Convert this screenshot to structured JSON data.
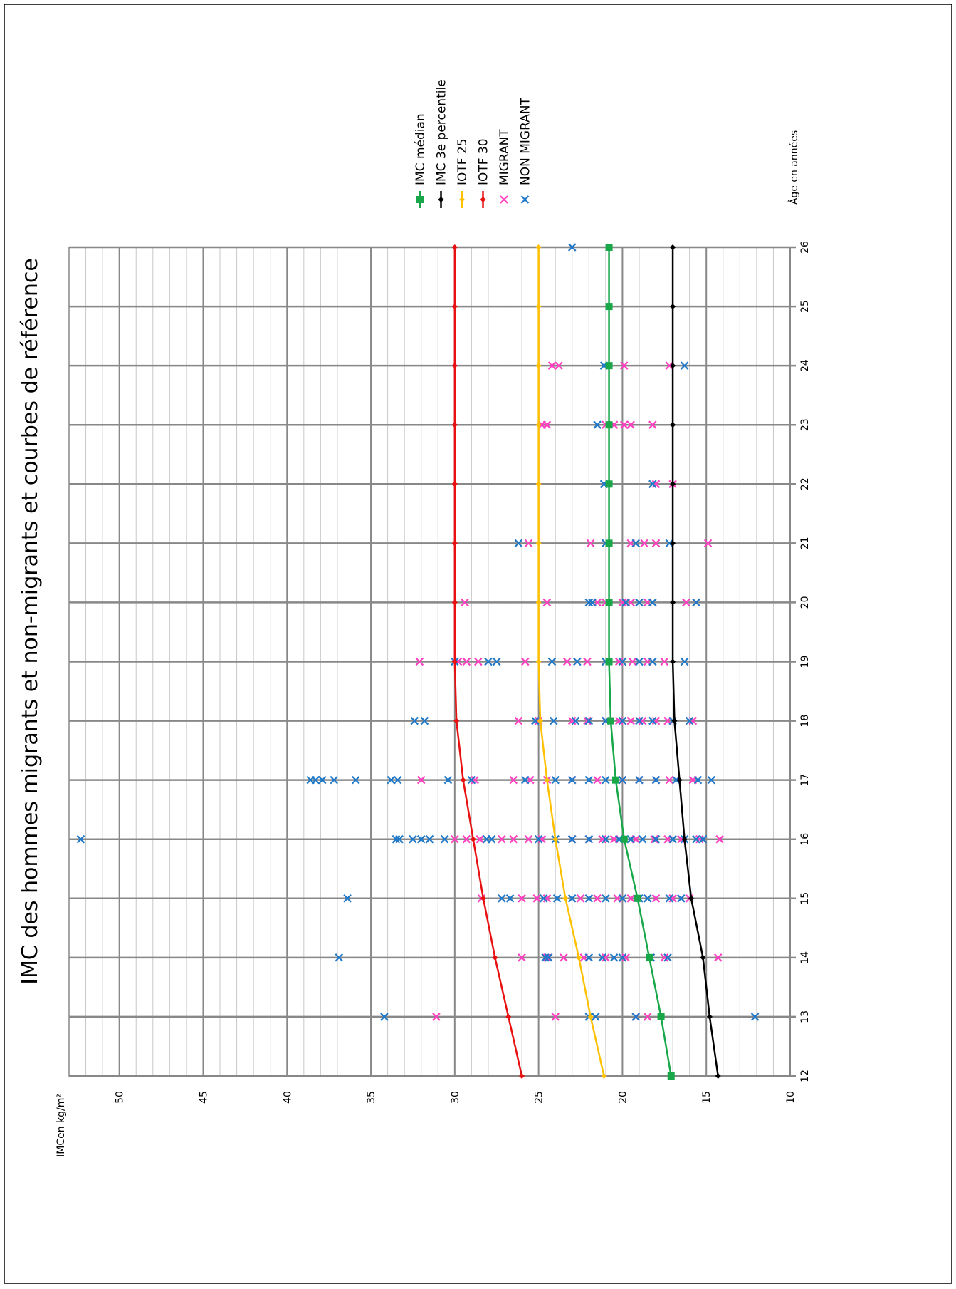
{
  "chart_data": {
    "type": "line",
    "title": "IMC des hommes migrants et non-migrants et courbes de référence",
    "xlabel": "Âge en années",
    "ylabel": "IMCen kg/m²",
    "x": [
      12,
      13,
      14,
      15,
      16,
      17,
      18,
      19,
      20,
      21,
      22,
      23,
      24,
      25,
      26
    ],
    "xlim": [
      12,
      26
    ],
    "xticks": [
      12,
      13,
      14,
      15,
      16,
      17,
      18,
      19,
      20,
      21,
      22,
      23,
      24,
      25,
      26
    ],
    "ylim": [
      10,
      53
    ],
    "yticks": [
      10,
      15,
      20,
      25,
      30,
      35,
      40,
      45,
      50
    ],
    "yminor_step": 1,
    "grid": true,
    "rotated": true,
    "series": [
      {
        "name": "IMC médian",
        "color": "#18a84a",
        "marker": "square",
        "values": [
          17.1,
          17.7,
          18.4,
          19.1,
          19.9,
          20.4,
          20.7,
          20.8,
          20.8,
          20.8,
          20.8,
          20.8,
          20.8,
          20.8,
          20.8
        ]
      },
      {
        "name": "IMC 3e percentile",
        "color": "#000000",
        "marker": "diamond",
        "values": [
          14.3,
          14.8,
          15.2,
          15.9,
          16.3,
          16.6,
          16.9,
          17.0,
          17.0,
          17.0,
          17.0,
          17.0,
          17.0,
          17.0,
          17.0
        ]
      },
      {
        "name": "IOTF 25",
        "color": "#ffc000",
        "marker": "diamond",
        "values": [
          21.1,
          21.9,
          22.6,
          23.4,
          24.0,
          24.5,
          24.9,
          25.0,
          25.0,
          25.0,
          25.0,
          25.0,
          25.0,
          25.0,
          25.0
        ]
      },
      {
        "name": "IOTF 30",
        "color": "#e81010",
        "marker": "diamond",
        "values": [
          26.0,
          26.8,
          27.6,
          28.3,
          28.9,
          29.5,
          29.9,
          30.0,
          30.0,
          30.0,
          30.0,
          30.0,
          30.0,
          30.0,
          30.0
        ]
      },
      {
        "name": "MIGRANT",
        "color": "#ff40c0",
        "type": "scatter",
        "x": [
          13,
          13,
          13,
          13,
          14,
          14,
          14,
          14,
          14,
          14,
          14,
          14,
          15,
          15,
          15,
          15,
          15,
          15,
          15,
          15,
          15,
          15,
          15,
          16,
          16,
          16,
          16,
          16,
          16,
          16,
          16,
          16,
          16,
          16,
          16,
          16,
          16,
          16,
          16,
          16,
          17,
          17,
          17,
          17,
          17,
          17,
          17,
          17,
          17,
          17,
          17,
          17,
          18,
          18,
          18,
          18,
          18,
          18,
          18,
          18,
          18,
          18,
          18,
          19,
          19,
          19,
          19,
          19,
          19,
          19,
          19,
          19,
          19,
          19,
          19,
          20,
          20,
          20,
          20,
          20,
          20,
          20,
          20,
          21,
          21,
          21,
          21,
          21,
          21,
          21,
          22,
          22,
          23,
          23,
          23,
          23,
          23,
          23,
          23,
          24,
          24,
          24,
          24
        ],
        "values": [
          31.1,
          24.0,
          19.2,
          18.5,
          26.0,
          24.5,
          23.5,
          22.3,
          21.0,
          19.8,
          17.5,
          14.3,
          28.4,
          26.0,
          25.1,
          24.5,
          22.5,
          21.5,
          20.3,
          19.5,
          18.0,
          17.0,
          16.0,
          30.0,
          29.3,
          28.5,
          27.2,
          26.5,
          25.6,
          24.8,
          23.0,
          22.0,
          21.2,
          20.5,
          19.2,
          18.1,
          17.3,
          16.5,
          15.4,
          14.2,
          32.0,
          28.8,
          26.5,
          25.5,
          24.5,
          23.0,
          21.5,
          20.0,
          19.0,
          18.0,
          17.2,
          15.8,
          26.2,
          25.0,
          23.0,
          22.1,
          21.0,
          20.2,
          19.5,
          18.8,
          18.0,
          17.3,
          15.8,
          32.1,
          29.8,
          29.3,
          28.6,
          25.8,
          23.3,
          22.1,
          21.0,
          20.2,
          19.4,
          18.5,
          17.5,
          29.4,
          24.5,
          21.5,
          21.0,
          20.0,
          19.5,
          18.5,
          16.2,
          25.6,
          21.9,
          21.0,
          19.5,
          18.7,
          18.0,
          14.9,
          18.0,
          17.0,
          24.8,
          24.5,
          21.0,
          20.5,
          19.9,
          19.5,
          18.2,
          24.2,
          23.8,
          19.9,
          17.2
        ]
      },
      {
        "name": "NON MIGRANT",
        "color": "#1f78c8",
        "type": "scatter",
        "x": [
          13,
          13,
          13,
          13,
          13,
          14,
          14,
          14,
          14,
          14,
          14,
          14,
          14,
          14,
          15,
          15,
          15,
          15,
          15,
          15,
          15,
          15,
          15,
          15,
          15,
          15,
          15,
          16,
          16,
          16,
          16,
          16,
          16,
          16,
          16,
          16,
          16,
          16,
          16,
          16,
          16,
          16,
          16,
          16,
          16,
          16,
          16,
          16,
          16,
          17,
          17,
          17,
          17,
          17,
          17,
          17,
          17,
          17,
          17,
          17,
          17,
          17,
          17,
          17,
          17,
          17,
          17,
          17,
          17,
          18,
          18,
          18,
          18,
          18,
          18,
          18,
          18,
          18,
          18,
          18,
          18,
          19,
          19,
          19,
          19,
          19,
          19,
          19,
          19,
          19,
          19,
          20,
          20,
          20,
          20,
          20,
          20,
          21,
          21,
          21,
          21,
          22,
          22,
          23,
          24,
          24,
          26
        ],
        "values": [
          34.2,
          22.0,
          21.6,
          19.2,
          12.1,
          36.9,
          24.6,
          24.4,
          22.0,
          21.2,
          20.5,
          20.0,
          18.3,
          17.3,
          36.4,
          27.2,
          26.7,
          24.7,
          23.9,
          23.0,
          22.0,
          21.0,
          20.0,
          19.0,
          18.5,
          17.2,
          16.5,
          52.3,
          33.5,
          33.3,
          32.5,
          32.0,
          31.5,
          30.6,
          28.1,
          27.8,
          25.0,
          24.0,
          23.0,
          22.0,
          21.0,
          20.2,
          19.5,
          18.8,
          18.0,
          17.0,
          16.3,
          15.6,
          15.2,
          38.6,
          38.3,
          37.9,
          37.2,
          35.9,
          33.8,
          33.4,
          30.4,
          29.0,
          25.8,
          24.0,
          23.0,
          22.0,
          21.0,
          20.0,
          19.0,
          18.0,
          16.8,
          15.5,
          14.7,
          32.4,
          31.8,
          25.2,
          24.1,
          22.8,
          22.0,
          21.0,
          20.0,
          19.0,
          18.2,
          17.0,
          16.0,
          30.0,
          28.0,
          27.5,
          24.2,
          22.7,
          21.0,
          20.0,
          19.0,
          18.2,
          16.3,
          22.0,
          21.8,
          19.8,
          19.0,
          18.2,
          15.6,
          26.2,
          21.0,
          19.2,
          17.2,
          21.1,
          18.2,
          21.5,
          21.1,
          16.3,
          23.0
        ]
      }
    ]
  }
}
